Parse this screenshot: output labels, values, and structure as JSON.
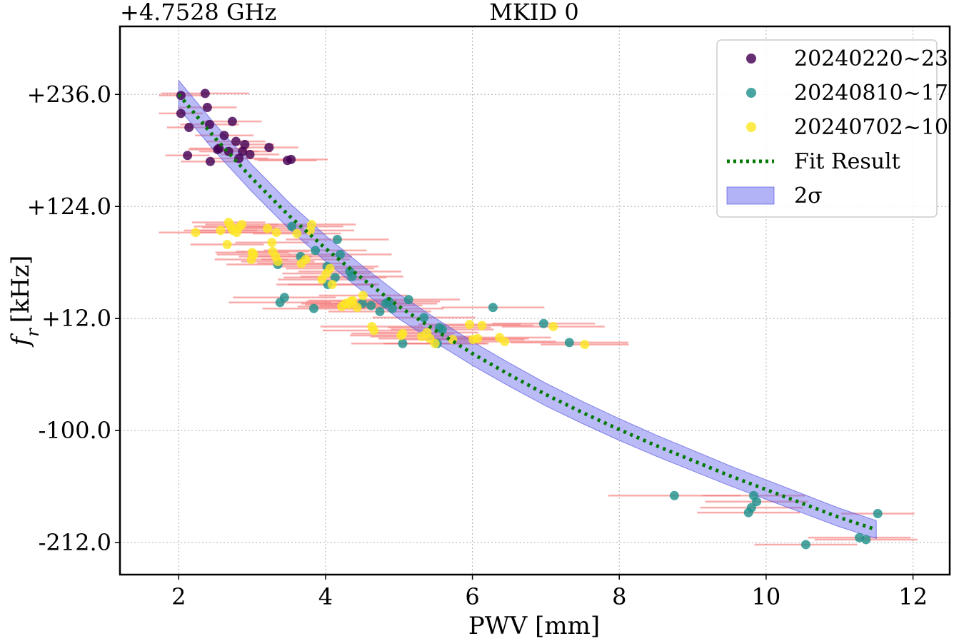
{
  "chart_data": {
    "type": "scatter",
    "title": "MKID 0",
    "offset_label": "+4.7528 GHz",
    "xlabel": "PWV [mm]",
    "ylabel": {
      "main": "f",
      "sub": "r",
      "unit": "[kHz]"
    },
    "xlim": [
      1.2,
      12.5
    ],
    "ylim": [
      -244,
      304
    ],
    "x_ticks": [
      2,
      4,
      6,
      8,
      10,
      12
    ],
    "x_tick_labels": [
      "2",
      "4",
      "6",
      "8",
      "10",
      "12"
    ],
    "y_ticks": [
      236,
      124,
      12,
      -100,
      -212
    ],
    "y_tick_labels": [
      "+236.0",
      "+124.0",
      "+12.0",
      "-100.0",
      "-212.0"
    ],
    "grid": true,
    "legend_position": "top-right",
    "legend": {
      "series_labels": [
        "20240220~23",
        "20240810~17",
        "20240702~10"
      ],
      "fit_label": "Fit Result",
      "band_label": "2σ"
    },
    "colors": {
      "series": [
        "#440154",
        "#21918c",
        "#fde725"
      ],
      "fit": "#007a00",
      "band": "#6666ee",
      "errorbar": "#f48080"
    },
    "fit": {
      "x": [
        2.0,
        2.5,
        3.0,
        3.5,
        4.0,
        4.5,
        5.0,
        5.5,
        6.0,
        6.5,
        7.0,
        7.5,
        8.0,
        8.5,
        9.0,
        9.5,
        10.0,
        10.5,
        11.0,
        11.5
      ],
      "y": [
        236,
        192,
        152,
        115,
        82,
        52,
        24,
        0,
        -23,
        -44,
        -64,
        -82,
        -99,
        -115,
        -130,
        -145,
        -159,
        -173,
        -187,
        -199
      ],
      "band_halfwidth_left": 14,
      "band_halfwidth_right": 9
    },
    "series": [
      {
        "name": "20240220~23",
        "points": [
          {
            "x": 2.03,
            "y": 235,
            "xerr": 0.3
          },
          {
            "x": 2.03,
            "y": 217,
            "xerr": 0.3
          },
          {
            "x": 2.12,
            "y": 175,
            "xerr": 0.3
          },
          {
            "x": 2.14,
            "y": 203,
            "xerr": 0.3
          },
          {
            "x": 2.36,
            "y": 237,
            "xerr": 0.6
          },
          {
            "x": 2.39,
            "y": 223,
            "xerr": 0.4
          },
          {
            "x": 2.42,
            "y": 206,
            "xerr": 0.4
          },
          {
            "x": 2.43,
            "y": 169,
            "xerr": 0.4
          },
          {
            "x": 2.53,
            "y": 181,
            "xerr": 0.4
          },
          {
            "x": 2.55,
            "y": 182,
            "xerr": 0.4
          },
          {
            "x": 2.62,
            "y": 195,
            "xerr": 0.4
          },
          {
            "x": 2.68,
            "y": 179,
            "xerr": 0.4
          },
          {
            "x": 2.73,
            "y": 209,
            "xerr": 0.4
          },
          {
            "x": 2.78,
            "y": 189,
            "xerr": 0.4
          },
          {
            "x": 2.82,
            "y": 172,
            "xerr": 0.4
          },
          {
            "x": 2.87,
            "y": 179,
            "xerr": 0.4
          },
          {
            "x": 2.9,
            "y": 186,
            "xerr": 0.4
          },
          {
            "x": 2.97,
            "y": 176,
            "xerr": 0.4
          },
          {
            "x": 3.23,
            "y": 183,
            "xerr": 0.4
          },
          {
            "x": 3.48,
            "y": 170,
            "xerr": 0.4
          },
          {
            "x": 3.53,
            "y": 171,
            "xerr": 0.5
          }
        ]
      },
      {
        "name": "20240810~17",
        "points": [
          {
            "x": 3.35,
            "y": 66,
            "xerr": 0.7
          },
          {
            "x": 3.38,
            "y": 28,
            "xerr": 0.7
          },
          {
            "x": 3.44,
            "y": 33,
            "xerr": 0.7
          },
          {
            "x": 3.54,
            "y": 104,
            "xerr": 0.7
          },
          {
            "x": 3.66,
            "y": 74,
            "xerr": 0.7
          },
          {
            "x": 3.84,
            "y": 22,
            "xerr": 0.7
          },
          {
            "x": 3.86,
            "y": 80,
            "xerr": 0.7
          },
          {
            "x": 4.02,
            "y": 64,
            "xerr": 0.7
          },
          {
            "x": 4.03,
            "y": 46,
            "xerr": 0.7
          },
          {
            "x": 4.13,
            "y": 53,
            "xerr": 0.7
          },
          {
            "x": 4.16,
            "y": 91,
            "xerr": 0.7
          },
          {
            "x": 4.2,
            "y": 76,
            "xerr": 0.7
          },
          {
            "x": 4.33,
            "y": 59,
            "xerr": 0.7
          },
          {
            "x": 4.36,
            "y": 54,
            "xerr": 0.7
          },
          {
            "x": 4.5,
            "y": 27,
            "xerr": 0.7
          },
          {
            "x": 4.62,
            "y": 25,
            "xerr": 0.7
          },
          {
            "x": 4.74,
            "y": 19,
            "xerr": 0.7
          },
          {
            "x": 4.82,
            "y": 27,
            "xerr": 0.7
          },
          {
            "x": 4.86,
            "y": 29,
            "xerr": 0.7
          },
          {
            "x": 4.91,
            "y": 22,
            "xerr": 0.7
          },
          {
            "x": 5.05,
            "y": -13,
            "xerr": 0.7
          },
          {
            "x": 5.13,
            "y": 31,
            "xerr": 0.7
          },
          {
            "x": 5.34,
            "y": 13,
            "xerr": 0.7
          },
          {
            "x": 5.52,
            "y": -13,
            "xerr": 0.7
          },
          {
            "x": 5.55,
            "y": 3,
            "xerr": 0.7
          },
          {
            "x": 5.59,
            "y": 1,
            "xerr": 0.7
          },
          {
            "x": 6.28,
            "y": 23,
            "xerr": 0.7
          },
          {
            "x": 6.97,
            "y": 7,
            "xerr": 0.7
          },
          {
            "x": 7.32,
            "y": -12,
            "xerr": 0.8
          },
          {
            "x": 8.75,
            "y": -165,
            "xerr": 0.9
          },
          {
            "x": 9.76,
            "y": -182,
            "xerr": 0.7
          },
          {
            "x": 9.8,
            "y": -177,
            "xerr": 0.7
          },
          {
            "x": 9.83,
            "y": -165,
            "xerr": 0.7
          },
          {
            "x": 9.87,
            "y": -171,
            "xerr": 0.7
          },
          {
            "x": 10.54,
            "y": -214,
            "xerr": 0.7
          },
          {
            "x": 11.27,
            "y": -207,
            "xerr": 0.7
          },
          {
            "x": 11.36,
            "y": -209,
            "xerr": 0.7
          },
          {
            "x": 11.52,
            "y": -183,
            "xerr": 0.5
          }
        ]
      },
      {
        "name": "20240702~10",
        "points": [
          {
            "x": 2.23,
            "y": 98,
            "xerr": 0.5
          },
          {
            "x": 2.57,
            "y": 100,
            "xerr": 0.5
          },
          {
            "x": 2.66,
            "y": 86,
            "xerr": 0.5
          },
          {
            "x": 2.68,
            "y": 108,
            "xerr": 0.5
          },
          {
            "x": 2.71,
            "y": 104,
            "xerr": 0.5
          },
          {
            "x": 2.74,
            "y": 100,
            "xerr": 0.5
          },
          {
            "x": 2.79,
            "y": 98,
            "xerr": 0.5
          },
          {
            "x": 2.82,
            "y": 103,
            "xerr": 0.5
          },
          {
            "x": 2.86,
            "y": 106,
            "xerr": 0.5
          },
          {
            "x": 2.99,
            "y": 71,
            "xerr": 0.5
          },
          {
            "x": 3.0,
            "y": 78,
            "xerr": 0.5
          },
          {
            "x": 3.02,
            "y": 76,
            "xerr": 0.5
          },
          {
            "x": 3.21,
            "y": 102,
            "xerr": 0.5
          },
          {
            "x": 3.27,
            "y": 88,
            "xerr": 0.5
          },
          {
            "x": 3.28,
            "y": 79,
            "xerr": 0.5
          },
          {
            "x": 3.32,
            "y": 74,
            "xerr": 0.5
          },
          {
            "x": 3.33,
            "y": 98,
            "xerr": 0.5
          },
          {
            "x": 3.35,
            "y": 69,
            "xerr": 0.5
          },
          {
            "x": 3.61,
            "y": 97,
            "xerr": 0.6
          },
          {
            "x": 3.67,
            "y": 67,
            "xerr": 0.6
          },
          {
            "x": 3.73,
            "y": 71,
            "xerr": 0.6
          },
          {
            "x": 3.79,
            "y": 100,
            "xerr": 0.6
          },
          {
            "x": 3.81,
            "y": 106,
            "xerr": 0.6
          },
          {
            "x": 3.95,
            "y": 51,
            "xerr": 0.6
          },
          {
            "x": 4.01,
            "y": 57,
            "xerr": 0.6
          },
          {
            "x": 4.06,
            "y": 62,
            "xerr": 0.6
          },
          {
            "x": 4.09,
            "y": 46,
            "xerr": 0.6
          },
          {
            "x": 4.22,
            "y": 24,
            "xerr": 0.6
          },
          {
            "x": 4.27,
            "y": 27,
            "xerr": 0.6
          },
          {
            "x": 4.32,
            "y": 26,
            "xerr": 0.6
          },
          {
            "x": 4.34,
            "y": 29,
            "xerr": 0.6
          },
          {
            "x": 4.37,
            "y": 30,
            "xerr": 0.6
          },
          {
            "x": 4.43,
            "y": 23,
            "xerr": 0.6
          },
          {
            "x": 4.51,
            "y": 35,
            "xerr": 0.6
          },
          {
            "x": 4.63,
            "y": 4,
            "xerr": 0.7
          },
          {
            "x": 4.66,
            "y": 0,
            "xerr": 0.7
          },
          {
            "x": 5.03,
            "y": -5,
            "xerr": 0.7
          },
          {
            "x": 5.05,
            "y": -3,
            "xerr": 0.7
          },
          {
            "x": 5.31,
            "y": -6,
            "xerr": 0.7
          },
          {
            "x": 5.38,
            "y": -2,
            "xerr": 0.7
          },
          {
            "x": 5.42,
            "y": -8,
            "xerr": 0.7
          },
          {
            "x": 5.49,
            "y": -13,
            "xerr": 0.7
          },
          {
            "x": 5.73,
            "y": -9,
            "xerr": 0.7
          },
          {
            "x": 5.96,
            "y": 6,
            "xerr": 0.7
          },
          {
            "x": 6.01,
            "y": -9,
            "xerr": 0.7
          },
          {
            "x": 6.07,
            "y": -8,
            "xerr": 0.7
          },
          {
            "x": 6.13,
            "y": 5,
            "xerr": 0.7
          },
          {
            "x": 6.37,
            "y": -7,
            "xerr": 0.7
          },
          {
            "x": 6.44,
            "y": -11,
            "xerr": 0.7
          },
          {
            "x": 7.1,
            "y": 4,
            "xerr": 0.7
          },
          {
            "x": 7.53,
            "y": -14,
            "xerr": 0.6
          }
        ]
      }
    ]
  }
}
